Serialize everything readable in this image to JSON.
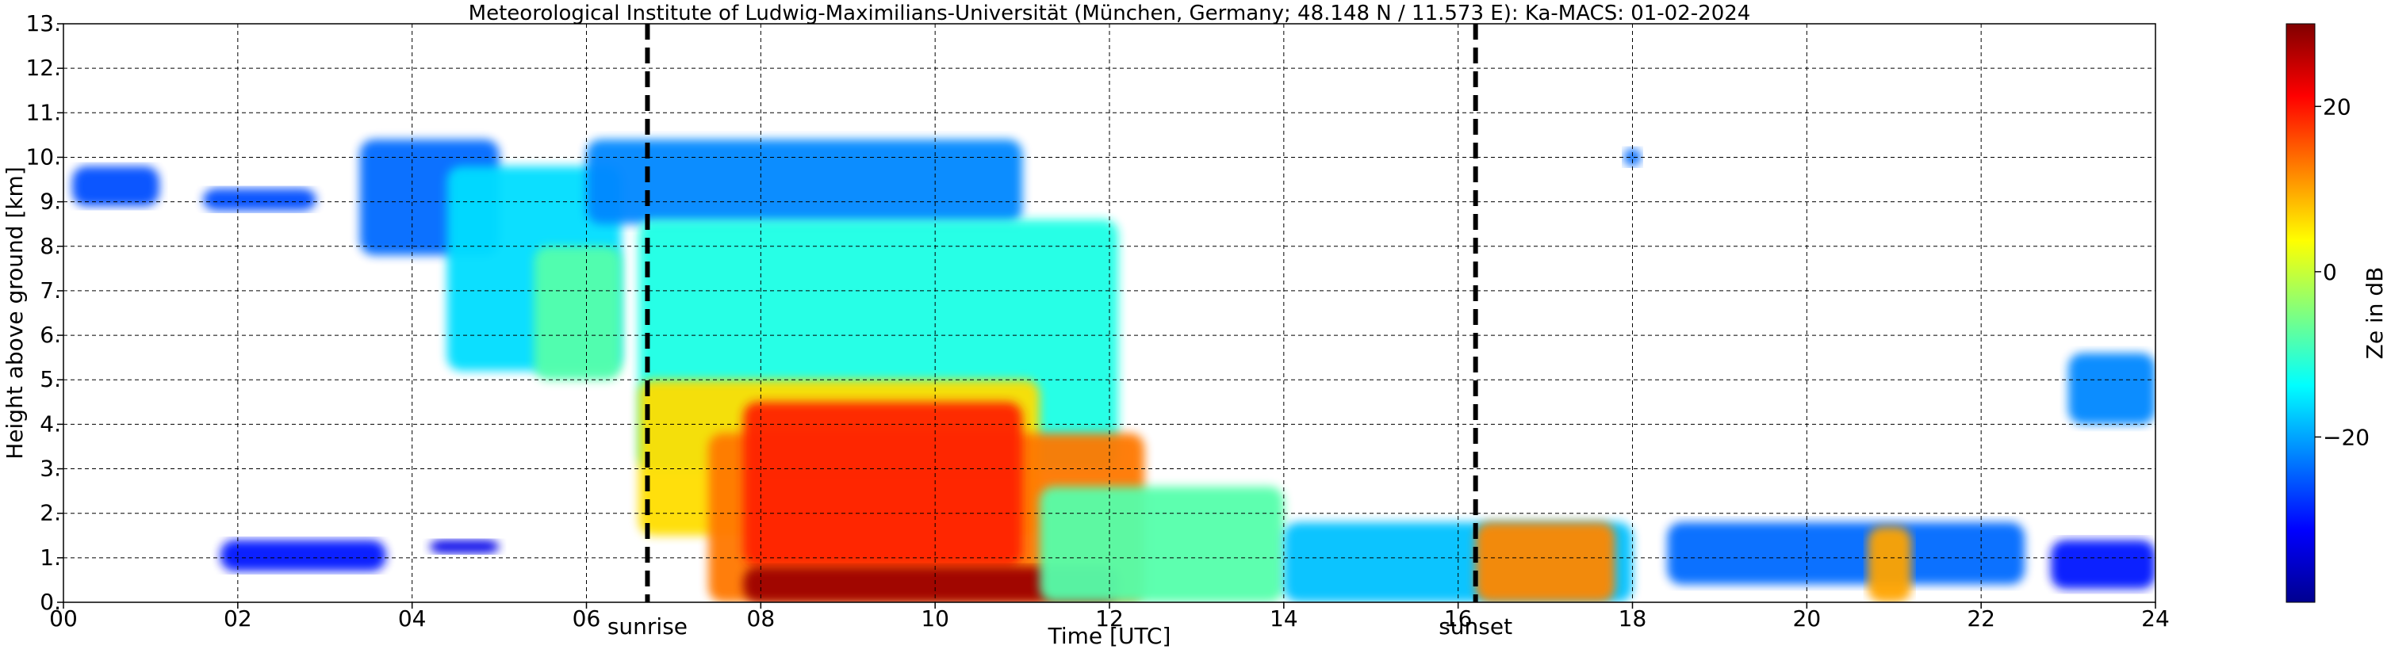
{
  "chart_data": {
    "type": "heatmap",
    "title": "Meteorological Institute of Ludwig-Maximilians-Universität (München, Germany; 48.148 N / 11.573 E):    Ka-MACS: 01-02-2024",
    "xlabel": "Time [UTC]",
    "ylabel": "Height above ground [km]",
    "xlim": [
      0,
      24
    ],
    "ylim": [
      0,
      13
    ],
    "x_ticks": [
      "00",
      "02",
      "04",
      "06",
      "08",
      "10",
      "12",
      "14",
      "16",
      "18",
      "20",
      "22",
      "24"
    ],
    "y_ticks": [
      "0.",
      "1.",
      "2.",
      "3.",
      "4.",
      "5.",
      "6.",
      "7.",
      "8.",
      "9.",
      "10.",
      "11.",
      "12.",
      "13."
    ],
    "grid": true,
    "colormap": "jet",
    "colorbar": {
      "label": "Ze in dB",
      "range": [
        -40,
        30
      ],
      "ticks": [
        {
          "value": 20,
          "label": "20"
        },
        {
          "value": 0,
          "label": "0"
        },
        {
          "value": -20,
          "label": "−20"
        }
      ]
    },
    "markers": [
      {
        "x": 6.7,
        "label": "sunrise"
      },
      {
        "x": 16.2,
        "label": "sunset"
      }
    ],
    "echo_regions": [
      {
        "t0": 0.1,
        "t1": 1.1,
        "h0": 8.9,
        "h1": 9.8,
        "ze": -26
      },
      {
        "t0": 1.6,
        "t1": 2.9,
        "h0": 8.8,
        "h1": 9.3,
        "ze": -26
      },
      {
        "t0": 1.8,
        "t1": 3.7,
        "h0": 0.7,
        "h1": 1.4,
        "ze": -30
      },
      {
        "t0": 4.2,
        "t1": 5.0,
        "h0": 1.1,
        "h1": 1.4,
        "ze": -33
      },
      {
        "t0": 3.4,
        "t1": 5.0,
        "h0": 7.8,
        "h1": 10.4,
        "ze": -24
      },
      {
        "t0": 4.4,
        "t1": 6.4,
        "h0": 5.2,
        "h1": 9.8,
        "ze": -16
      },
      {
        "t0": 5.4,
        "t1": 6.4,
        "h0": 5.0,
        "h1": 8.0,
        "ze": -8
      },
      {
        "t0": 6.0,
        "t1": 11.0,
        "h0": 8.5,
        "h1": 10.4,
        "ze": -22
      },
      {
        "t0": 6.6,
        "t1": 12.1,
        "h0": 3.0,
        "h1": 8.6,
        "ze": -12
      },
      {
        "t0": 6.6,
        "t1": 11.2,
        "h0": 1.5,
        "h1": 5.0,
        "ze": 6
      },
      {
        "t0": 7.4,
        "t1": 12.4,
        "h0": 0.0,
        "h1": 3.8,
        "ze": 13
      },
      {
        "t0": 7.8,
        "t1": 11.0,
        "h0": 0.8,
        "h1": 4.5,
        "ze": 19
      },
      {
        "t0": 7.8,
        "t1": 12.1,
        "h0": 0.0,
        "h1": 0.8,
        "ze": 28
      },
      {
        "t0": 11.2,
        "t1": 14.0,
        "h0": 0.0,
        "h1": 2.6,
        "ze": -8
      },
      {
        "t0": 14.0,
        "t1": 18.0,
        "h0": 0.0,
        "h1": 1.8,
        "ze": -18
      },
      {
        "t0": 16.2,
        "t1": 17.8,
        "h0": 0.0,
        "h1": 1.8,
        "ze": 12
      },
      {
        "t0": 18.4,
        "t1": 22.5,
        "h0": 0.4,
        "h1": 1.8,
        "ze": -24
      },
      {
        "t0": 20.7,
        "t1": 21.2,
        "h0": 0.0,
        "h1": 1.7,
        "ze": 10
      },
      {
        "t0": 23.0,
        "t1": 24.0,
        "h0": 4.0,
        "h1": 5.6,
        "ze": -22
      },
      {
        "t0": 22.8,
        "t1": 24.0,
        "h0": 0.3,
        "h1": 1.4,
        "ze": -30
      },
      {
        "t0": 17.9,
        "t1": 18.1,
        "h0": 9.8,
        "h1": 10.2,
        "ze": -24
      }
    ]
  }
}
